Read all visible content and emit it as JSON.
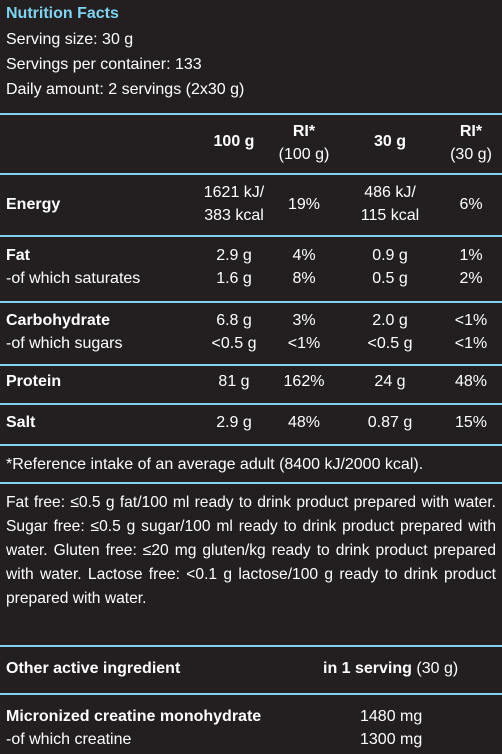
{
  "header": {
    "title": "Nutrition Facts",
    "serving_size": "Serving size: 30 g",
    "servings_per_container": "Servings per container: 133",
    "daily_amount": "Daily amount: 2 servings (2x30 g)"
  },
  "table": {
    "columns": [
      {
        "label": "100 g",
        "sub": ""
      },
      {
        "label": "RI*",
        "sub": "(100 g)"
      },
      {
        "label": "30 g",
        "sub": ""
      },
      {
        "label": "RI*",
        "sub": "(30 g)"
      }
    ],
    "rows": {
      "energy": {
        "label": "Energy",
        "v100_1": "1621 kJ/",
        "v100_2": "383 kcal",
        "ri100": "19%",
        "v30_1": "486 kJ/",
        "v30_2": "115 kcal",
        "ri30": "6%"
      },
      "fat": {
        "label": "Fat",
        "v100": "2.9 g",
        "ri100": "4%",
        "v30": "0.9 g",
        "ri30": "1%"
      },
      "saturates": {
        "label": "-of which saturates",
        "v100": "1.6 g",
        "ri100": "8%",
        "v30": "0.5 g",
        "ri30": "2%"
      },
      "carbohydrate": {
        "label": "Carbohydrate",
        "v100": "6.8 g",
        "ri100": "3%",
        "v30": "2.0 g",
        "ri30": "<1%"
      },
      "sugars": {
        "label": "-of which sugars",
        "v100": "<0.5 g",
        "ri100": "<1%",
        "v30": "<0.5 g",
        "ri30": "<1%"
      },
      "protein": {
        "label": "Protein",
        "v100": "81 g",
        "ri100": "162%",
        "v30": "24 g",
        "ri30": "48%"
      },
      "salt": {
        "label": "Salt",
        "v100": "2.9 g",
        "ri100": "48%",
        "v30": "0.87 g",
        "ri30": "15%"
      }
    }
  },
  "footnote": "*Reference intake of an average adult (8400 kJ/2000 kcal).",
  "claims": "Fat free: ≤0.5 g fat/100 ml ready to drink product prepared with water. Sugar free: ≤0.5 g sugar/100 ml ready to drink product prepared with water. Gluten free: ≤20 mg gluten/kg ready to drink product prepared with water. Lactose free: <0.1 g lactose/100 g ready to drink product prepared with water.",
  "active": {
    "header_label": "Other active ingredient",
    "header_amount_bold": "in 1 serving",
    "header_amount_rest": " (30 g)",
    "items": [
      {
        "label": "Micronized creatine monohydrate",
        "value": "1480 mg"
      },
      {
        "label": "-of which creatine",
        "value": "1300 mg"
      }
    ]
  },
  "colors": {
    "background": "#231f20",
    "accent": "#7fd3f0",
    "text": "#ffffff"
  }
}
